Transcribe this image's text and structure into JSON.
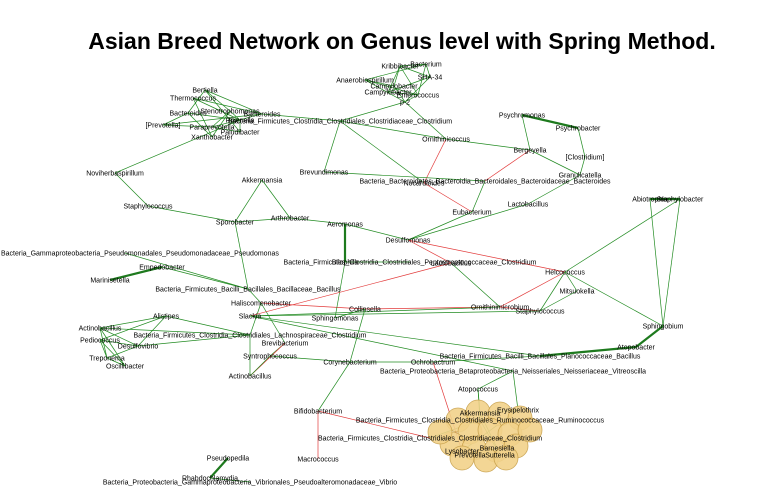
{
  "title": "Asian Breed Network on Genus level with Spring Method.",
  "nodes": {
    "n1": "Kribbibacter",
    "n2": "Bacterium",
    "n3": "SHA-34",
    "n4": "Anaerobiospirillum",
    "n5": "Campylobacter",
    "n6": "Campylobacter",
    "n7": "Enterococcus",
    "n8": "p-2",
    "n9": "Bertiella",
    "n10": "Thermococcus",
    "n11": "Stenotrophomonas",
    "n12": "Bacteroides",
    "n13": "Rikenella",
    "n14": "Bacteroides",
    "n15": "[Prevotella]",
    "n16": "Paraprevotella",
    "n17": "Bacteria_Firmicutes_Clostridia_Clostridiales_Clostridiaceae_Clostridium",
    "n18": "Xanthobacter",
    "n19": "Paludibacter",
    "n20": "Psychromonas",
    "n21": "Psychrobacter",
    "n22": "Ornithinicoccus",
    "n23": "[Clostridium]",
    "n24": "Bergeyella",
    "n25": "Granulicatella",
    "n26": "Nocardioides",
    "n27": "Bacteria_Bacteroidetes_Bacteroidia_Bacteroidales_Bacteroidaceae_Bacteroides",
    "n28": "Noviherbaspirillum",
    "n29": "Brevundimonas",
    "n30": "Abiotrophia",
    "n31": "Staphylobacter",
    "n32": "Akkermansia",
    "n33": "Eubacterium",
    "n34": "Lactobacillus",
    "n35": "Staphylococcus",
    "n36": "Sporobacter",
    "n37": "Arthrobacter",
    "n38": "Aeromonas",
    "n39": "Bacteria_Gammaproteobacteria_Pseudomonadales_Pseudomonadaceae_Pseudomonas",
    "n40": "Desulfomonas",
    "n41": "Bacteria_Firmicutes_Clostridia_Clostridiales_Peptostreptococcaceae_Clostridium",
    "n42": "Empedobacter",
    "n43": "Helcococcus",
    "n44": "Bilophila",
    "n45": "Marinisetella",
    "n46": "Bacteria_Firmicutes_Bacilli_Bacillales_Bacillaceae_Bacillus",
    "n47": "Lactobacillus",
    "n48": "Mitsuokella",
    "n49": "Collinsella",
    "n50": "Ornithinimicrobium",
    "n51": "Haliscomenobacter",
    "n52": "Alistipes",
    "n53": "Bacteria_Firmicutes_Clostridia_Clostridiales_Lachnospiraceae_Clostridium",
    "n54": "Actinobacillus",
    "n55": "Sphingomonas",
    "n56": "Staphylococcus",
    "n57": "Slackia",
    "n58": "Sphingobium",
    "n59": "Pediococcus",
    "n60": "Desulfovibrio",
    "n61": "Brevibacterium",
    "n62": "Atopobacter",
    "n63": "Treponema",
    "n64": "Oscillibacter",
    "n65": "Syntrophococcus",
    "n66": "Corynebacterium",
    "n67": "Ochrobactrum",
    "n68": "Bacteria_Firmicutes_Bacilli_Bacillales_Planococcaceae_Bacillus",
    "n69": "Actinobacillus",
    "n70": "Bacteria_Proteobacteria_Betaproteobacteria_Neisseriales_Neisseriaceae_Vitreoscilla",
    "n71": "Atopococcus",
    "n72": "Bifidobacterium",
    "n73": "Bacteria_Firmicutes_Clostridia_Clostridiales_Ruminococcaceae_Ruminococcus",
    "n74": "Bacteria_Firmicutes_Clostridia_Clostridiales_Clostridiaceae_Clostridium",
    "n75": "Macrococcus",
    "n76": "Pseudopedila",
    "n77": "Rhabdochlamydia",
    "n78": "Bacteria_Proteobacteria_Gammaproteobacteria_Vibrionales_Pseudoalteromonadaceae_Vibrio",
    "n79": "Barnesiella",
    "n80": "Lysobacter",
    "n81": "Prevotella",
    "n82": "Sutterella",
    "n83": "Akkermansia",
    "n84": "Erysipelothrix"
  }
}
